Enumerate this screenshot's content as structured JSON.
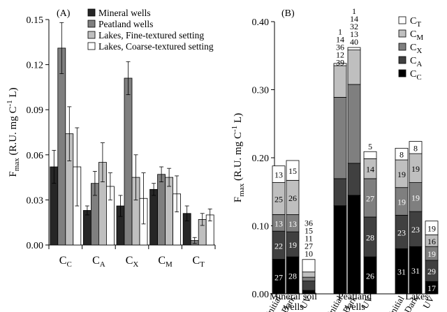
{
  "chart_data": [
    {
      "panel_label": "(A)",
      "type": "bar",
      "ylabel_parts": {
        "main": "F",
        "sub": "max",
        "rest": " (R.U. mg C",
        "sup": "-1",
        "end": " L)"
      },
      "ylim": [
        0,
        0.15
      ],
      "yticks": [
        "0.00",
        "0.03",
        "0.06",
        "0.09",
        "0.12",
        "0.15"
      ],
      "ytick_values": [
        0,
        0.03,
        0.06,
        0.09,
        0.12,
        0.15
      ],
      "categories": [
        {
          "main": "C",
          "sub": "C"
        },
        {
          "main": "C",
          "sub": "A"
        },
        {
          "main": "C",
          "sub": "X"
        },
        {
          "main": "C",
          "sub": "M"
        },
        {
          "main": "C",
          "sub": "T"
        }
      ],
      "legend_position": "top-left",
      "series": [
        {
          "name": "Mineral wells",
          "color": "#262626",
          "values": [
            0.052,
            0.023,
            0.026,
            0.037,
            0.021
          ],
          "errors": [
            0.011,
            0.003,
            0.007,
            0.004,
            0.005
          ]
        },
        {
          "name": "Peatland wells",
          "color": "#7f7f7f",
          "values": [
            0.131,
            0.041,
            0.111,
            0.047,
            0.003
          ],
          "errors": [
            0.017,
            0.008,
            0.011,
            0.005,
            0.002
          ]
        },
        {
          "name": "Lakes, Fine-textured setting",
          "color": "#bfbfbf",
          "values": [
            0.074,
            0.055,
            0.045,
            0.045,
            0.017
          ],
          "errors": [
            0.018,
            0.013,
            0.015,
            0.006,
            0.004
          ]
        },
        {
          "name": "Lakes, Coarse-textured setting",
          "color": "#ffffff",
          "values": [
            0.052,
            0.039,
            0.031,
            0.034,
            0.02
          ],
          "errors": [
            0.026,
            0.009,
            0.017,
            0.012,
            0.004
          ]
        }
      ]
    },
    {
      "panel_label": "(B)",
      "type": "bar",
      "stacked": true,
      "ylabel_parts": {
        "main": "F",
        "sub": "max",
        "rest": " (R.U. mg C",
        "sup": "-1",
        "end": " L)"
      },
      "ylim": [
        0,
        0.4
      ],
      "yticks": [
        "0.00",
        "0.10",
        "0.20",
        "0.30",
        "0.40"
      ],
      "ytick_values": [
        0,
        0.1,
        0.2,
        0.3,
        0.4
      ],
      "legend_position": "top-right",
      "components": [
        {
          "main": "C",
          "sub": "T",
          "color": "#ffffff"
        },
        {
          "main": "C",
          "sub": "M",
          "color": "#bfbfbf"
        },
        {
          "main": "C",
          "sub": "X",
          "color": "#7f7f7f"
        },
        {
          "main": "C",
          "sub": "A",
          "color": "#404040"
        },
        {
          "main": "C",
          "sub": "C",
          "color": "#000000"
        }
      ],
      "groups": [
        {
          "name_lines": [
            "Mineral soil",
            "wells"
          ],
          "bars": [
            {
              "label": "Initial",
              "total": 0.188,
              "pct": {
                "C": 27,
                "A": 22,
                "X": 13,
                "M": 25,
                "T": 13
              }
            },
            {
              "label": "Dark",
              "total": 0.194,
              "pct": {
                "C": 28,
                "A": 19,
                "X": 13,
                "M": 26,
                "T": 15
              }
            },
            {
              "label": "UV",
              "total": 0.051,
              "pct": {
                "C": 10,
                "A": 27,
                "X": 11,
                "M": 15,
                "T": 36
              }
            }
          ]
        },
        {
          "name_lines": [
            "Peatland",
            "wells"
          ],
          "bars": [
            {
              "label": "Initial",
              "total": 0.332,
              "pct": {
                "C": 39,
                "A": 12,
                "X": 36,
                "M": 14,
                "T": 1
              }
            },
            {
              "label": "Dark",
              "total": 0.362,
              "pct": {
                "C": 40,
                "A": 13,
                "X": 32,
                "M": 14,
                "T": 1
              }
            },
            {
              "label": "UV",
              "total": 0.209,
              "pct": {
                "C": 26,
                "A": 28,
                "X": 27,
                "M": 14,
                "T": 5
              }
            }
          ]
        },
        {
          "name_lines": [
            "Lakes"
          ],
          "bars": [
            {
              "label": "Initial",
              "total": 0.214,
              "pct": {
                "C": 31,
                "A": 23,
                "X": 19,
                "M": 19,
                "T": 8
              }
            },
            {
              "label": "Dark",
              "total": 0.224,
              "pct": {
                "C": 31,
                "A": 23,
                "X": 19,
                "M": 19,
                "T": 8
              }
            },
            {
              "label": "UV",
              "total": 0.107,
              "pct": {
                "C": 17,
                "A": 29,
                "X": 19,
                "M": 16,
                "T": 19
              }
            }
          ]
        }
      ]
    }
  ]
}
